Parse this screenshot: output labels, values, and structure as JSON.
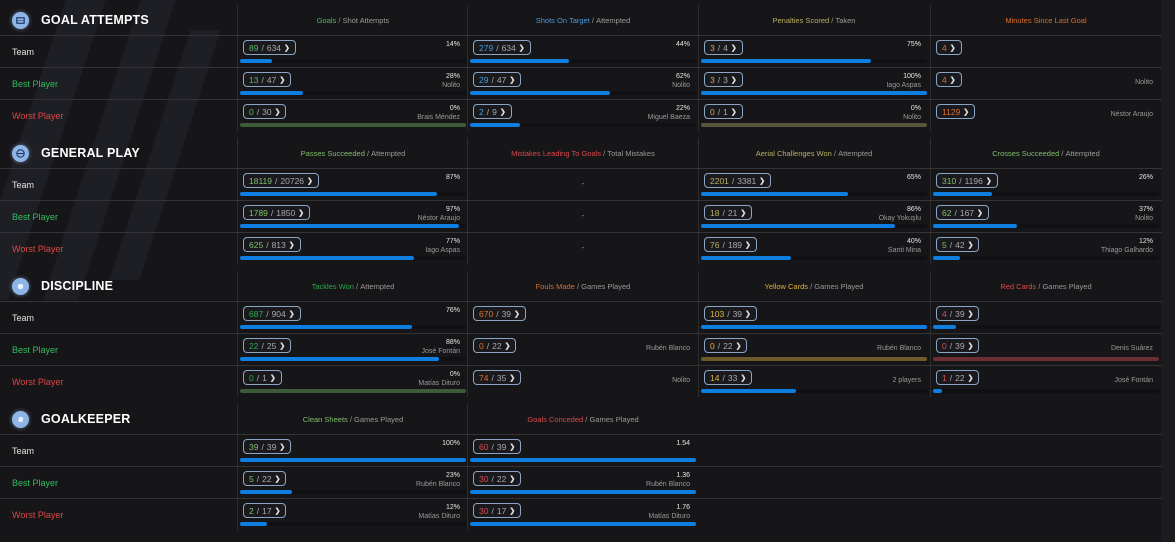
{
  "colors": {
    "accent_bar": "#0e7fe0",
    "team_label": "#e2e2e2",
    "best_label": "#2fbf5e",
    "worst_label": "#e04646"
  },
  "row_labels": {
    "team": "Team",
    "best": "Best Player",
    "worst": "Worst Player"
  },
  "sections": [
    {
      "title": "GOAL ATTEMPTS",
      "icon": "goal-net-icon",
      "columns": [
        {
          "metric": "Goals",
          "metric_color": "c-green",
          "denom": "Shot Attempts",
          "rows": [
            {
              "num": "89",
              "den": "634",
              "value": "14%",
              "fill": 14,
              "player": ""
            },
            {
              "num": "13",
              "den": "47",
              "value": "28%",
              "fill": 28,
              "player": "Nolito"
            },
            {
              "num": "0",
              "den": "30",
              "value": "0%",
              "fill": 0,
              "player": "Brais Méndez",
              "zero": "zero-green"
            }
          ]
        },
        {
          "metric": "Shots On Target",
          "metric_color": "c-blue",
          "denom": "Attempted",
          "rows": [
            {
              "num": "279",
              "den": "634",
              "value": "44%",
              "fill": 44,
              "player": ""
            },
            {
              "num": "29",
              "den": "47",
              "value": "62%",
              "fill": 62,
              "player": "Nolito"
            },
            {
              "num": "2",
              "den": "9",
              "value": "22%",
              "fill": 22,
              "player": "Miguel Baeza"
            }
          ]
        },
        {
          "metric": "Penalties Scored",
          "metric_color": "c-olive",
          "denom": "Taken",
          "rows": [
            {
              "num": "3",
              "den": "4",
              "value": "75%",
              "fill": 75,
              "player": ""
            },
            {
              "num": "3",
              "den": "3",
              "value": "100%",
              "fill": 100,
              "player": "Iago Aspas"
            },
            {
              "num": "0",
              "den": "1",
              "value": "0%",
              "fill": 0,
              "player": "Nolito",
              "zero": "zero-olive"
            }
          ]
        },
        {
          "metric": "Minutes Since Last Goal",
          "metric_color": "c-orange",
          "denom": "",
          "single": true,
          "rows": [
            {
              "num": "4",
              "player": ""
            },
            {
              "num": "4",
              "player": "Nolito"
            },
            {
              "num": "1129",
              "player": "Néstor Araujo"
            }
          ]
        }
      ]
    },
    {
      "title": "GENERAL PLAY",
      "icon": "ball-icon",
      "columns": [
        {
          "metric": "Passes Succeeded",
          "metric_color": "c-lgreen",
          "denom": "Attempted",
          "rows": [
            {
              "num": "18119",
              "den": "20726",
              "value": "87%",
              "fill": 87,
              "player": ""
            },
            {
              "num": "1789",
              "den": "1850",
              "value": "97%",
              "fill": 97,
              "player": "Néstor Araujo"
            },
            {
              "num": "625",
              "den": "813",
              "value": "77%",
              "fill": 77,
              "player": "Iago Aspas"
            }
          ]
        },
        {
          "metric": "Mistakes Leading To Goals",
          "metric_color": "c-red",
          "denom": "Total Mistakes",
          "empty": true,
          "rows": [
            {
              "dash": "-"
            },
            {
              "dash": "-"
            },
            {
              "dash": "-"
            }
          ]
        },
        {
          "metric": "Aerial Challenges Won",
          "metric_color": "c-olive",
          "denom": "Attempted",
          "rows": [
            {
              "num": "2201",
              "den": "3381",
              "value": "65%",
              "fill": 65,
              "player": ""
            },
            {
              "num": "18",
              "den": "21",
              "value": "86%",
              "fill": 86,
              "player": "Okay Yokuşlu"
            },
            {
              "num": "76",
              "den": "189",
              "value": "40%",
              "fill": 40,
              "player": "Santi Mina"
            }
          ]
        },
        {
          "metric": "Crosses Succeeded",
          "metric_color": "c-lgreen",
          "denom": "Attempted",
          "rows": [
            {
              "num": "310",
              "den": "1196",
              "value": "26%",
              "fill": 26,
              "player": ""
            },
            {
              "num": "62",
              "den": "167",
              "value": "37%",
              "fill": 37,
              "player": "Nolito"
            },
            {
              "num": "5",
              "den": "42",
              "value": "12%",
              "fill": 12,
              "player": "Thiago Galhardo"
            }
          ]
        }
      ]
    },
    {
      "title": "DISCIPLINE",
      "icon": "whistle-icon",
      "columns": [
        {
          "metric": "Tackles Won",
          "metric_color": "c-tgreen",
          "denom": "Attempted",
          "rows": [
            {
              "num": "687",
              "den": "904",
              "value": "76%",
              "fill": 76,
              "player": ""
            },
            {
              "num": "22",
              "den": "25",
              "value": "88%",
              "fill": 88,
              "player": "José Fontán"
            },
            {
              "num": "0",
              "den": "1",
              "value": "0%",
              "fill": 0,
              "player": "Matías Dituro",
              "zero": "zero-green"
            }
          ]
        },
        {
          "metric": "Fouls Made",
          "metric_color": "c-orange",
          "denom": "Games Played",
          "nobar": true,
          "rows": [
            {
              "num": "670",
              "den": "39",
              "player": ""
            },
            {
              "num": "0",
              "den": "22",
              "player": "Rubén Blanco"
            },
            {
              "num": "74",
              "den": "35",
              "player": "Nolito"
            }
          ]
        },
        {
          "metric": "Yellow Cards",
          "metric_color": "c-yellow",
          "denom": "Games Played",
          "noval": true,
          "rows": [
            {
              "num": "103",
              "den": "39",
              "fill": 100,
              "player": ""
            },
            {
              "num": "0",
              "den": "22",
              "fill": 0,
              "player": "Rubén Blanco",
              "zero": "zero-gold"
            },
            {
              "num": "14",
              "den": "33",
              "fill": 42,
              "player": "2 players"
            }
          ]
        },
        {
          "metric": "Red Cards",
          "metric_color": "c-red",
          "denom": "Games Played",
          "noval": true,
          "rows": [
            {
              "num": "4",
              "den": "39",
              "fill": 10,
              "player": ""
            },
            {
              "num": "0",
              "den": "39",
              "fill": 0,
              "player": "Denis Suárez",
              "zero": "zero-red"
            },
            {
              "num": "1",
              "den": "22",
              "fill": 4,
              "player": "José Fontán"
            }
          ]
        }
      ]
    },
    {
      "title": "GOALKEEPER",
      "icon": "glove-icon",
      "columns": [
        {
          "metric": "Clean Sheets",
          "metric_color": "c-lgreen",
          "denom": "Games Played",
          "rows": [
            {
              "num": "39",
              "den": "39",
              "value": "100%",
              "fill": 100,
              "player": ""
            },
            {
              "num": "5",
              "den": "22",
              "value": "23%",
              "fill": 23,
              "player": "Rubén Blanco"
            },
            {
              "num": "2",
              "den": "17",
              "value": "12%",
              "fill": 12,
              "player": "Matías Dituro"
            }
          ]
        },
        {
          "metric": "Goals Conceded",
          "metric_color": "c-red",
          "denom": "Games Played",
          "rows": [
            {
              "num": "60",
              "den": "39",
              "value": "1.54",
              "fill": 100,
              "player": ""
            },
            {
              "num": "30",
              "den": "22",
              "value": "1.36",
              "fill": 100,
              "player": "Rubén Blanco"
            },
            {
              "num": "30",
              "den": "17",
              "value": "1.76",
              "fill": 100,
              "player": "Matías Dituro"
            }
          ]
        }
      ]
    }
  ]
}
